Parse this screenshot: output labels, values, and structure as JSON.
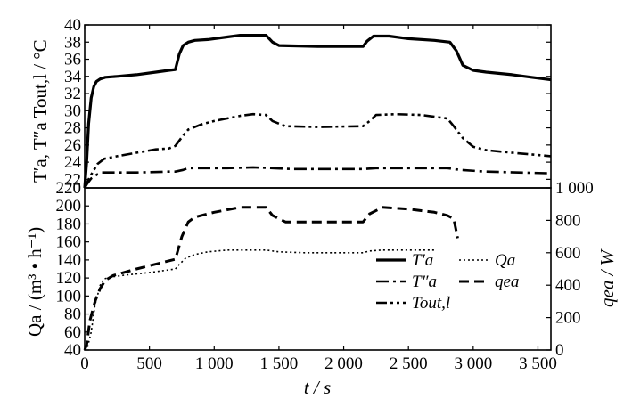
{
  "chart_data": [
    {
      "type": "line",
      "panel": "top",
      "ylabel": "T′a, T″a  Tout,l / °C",
      "ylim": [
        21,
        40
      ],
      "yticks": [
        22,
        24,
        26,
        28,
        30,
        32,
        34,
        36,
        38,
        40
      ],
      "xlim": [
        0,
        3600
      ],
      "grid": false,
      "series": [
        {
          "name": "T′a",
          "style": "solid",
          "points": [
            [
              0,
              21
            ],
            [
              15,
              24
            ],
            [
              30,
              28.5
            ],
            [
              50,
              31.5
            ],
            [
              70,
              32.8
            ],
            [
              90,
              33.4
            ],
            [
              120,
              33.7
            ],
            [
              160,
              33.9
            ],
            [
              250,
              34.0
            ],
            [
              400,
              34.2
            ],
            [
              550,
              34.5
            ],
            [
              650,
              34.7
            ],
            [
              700,
              34.8
            ],
            [
              730,
              36.6
            ],
            [
              760,
              37.6
            ],
            [
              800,
              38.0
            ],
            [
              850,
              38.2
            ],
            [
              950,
              38.3
            ],
            [
              1100,
              38.6
            ],
            [
              1200,
              38.8
            ],
            [
              1350,
              38.8
            ],
            [
              1400,
              38.8
            ],
            [
              1450,
              38.0
            ],
            [
              1500,
              37.6
            ],
            [
              1800,
              37.5
            ],
            [
              2150,
              37.5
            ],
            [
              2180,
              38.1
            ],
            [
              2230,
              38.7
            ],
            [
              2350,
              38.7
            ],
            [
              2500,
              38.4
            ],
            [
              2700,
              38.2
            ],
            [
              2820,
              38.0
            ],
            [
              2870,
              37.0
            ],
            [
              2920,
              35.3
            ],
            [
              3000,
              34.7
            ],
            [
              3100,
              34.5
            ],
            [
              3300,
              34.2
            ],
            [
              3450,
              33.9
            ],
            [
              3600,
              33.6
            ]
          ]
        },
        {
          "name": "T″a",
          "style": "dashdot",
          "points": [
            [
              0,
              21
            ],
            [
              20,
              21.5
            ],
            [
              50,
              22.1
            ],
            [
              100,
              22.6
            ],
            [
              130,
              22.8
            ],
            [
              200,
              22.8
            ],
            [
              400,
              22.8
            ],
            [
              650,
              22.9
            ],
            [
              700,
              22.9
            ],
            [
              760,
              23.1
            ],
            [
              800,
              23.3
            ],
            [
              900,
              23.3
            ],
            [
              1100,
              23.3
            ],
            [
              1300,
              23.4
            ],
            [
              1450,
              23.3
            ],
            [
              1600,
              23.2
            ],
            [
              1900,
              23.2
            ],
            [
              2150,
              23.2
            ],
            [
              2250,
              23.3
            ],
            [
              2500,
              23.3
            ],
            [
              2800,
              23.3
            ],
            [
              2900,
              23.1
            ],
            [
              3100,
              22.9
            ],
            [
              3600,
              22.7
            ]
          ]
        },
        {
          "name": "Tout,l",
          "style": "dashdotdot",
          "points": [
            [
              0,
              21
            ],
            [
              30,
              22.0
            ],
            [
              60,
              22.8
            ],
            [
              100,
              23.8
            ],
            [
              150,
              24.4
            ],
            [
              250,
              24.7
            ],
            [
              400,
              25.1
            ],
            [
              550,
              25.5
            ],
            [
              650,
              25.6
            ],
            [
              700,
              25.9
            ],
            [
              760,
              27.1
            ],
            [
              800,
              27.8
            ],
            [
              900,
              28.4
            ],
            [
              1000,
              28.8
            ],
            [
              1200,
              29.4
            ],
            [
              1300,
              29.6
            ],
            [
              1400,
              29.5
            ],
            [
              1450,
              28.8
            ],
            [
              1550,
              28.2
            ],
            [
              1800,
              28.1
            ],
            [
              2150,
              28.2
            ],
            [
              2200,
              28.8
            ],
            [
              2250,
              29.5
            ],
            [
              2400,
              29.6
            ],
            [
              2600,
              29.5
            ],
            [
              2800,
              29.1
            ],
            [
              2850,
              28.2
            ],
            [
              2920,
              26.8
            ],
            [
              3000,
              25.8
            ],
            [
              3100,
              25.4
            ],
            [
              3300,
              25.1
            ],
            [
              3450,
              24.9
            ],
            [
              3600,
              24.7
            ]
          ]
        }
      ]
    },
    {
      "type": "line",
      "panel": "bottom",
      "ylabel": "Qa / (m³ • h⁻¹)",
      "ylabel_right": "qea / W",
      "ylim": [
        40,
        220
      ],
      "yticks": [
        40,
        60,
        80,
        100,
        120,
        140,
        160,
        180,
        200,
        220
      ],
      "ylim_right": [
        0,
        1000
      ],
      "yticks_right": [
        0,
        200,
        400,
        600,
        800,
        1000
      ],
      "ytick_labels_right": [
        "0",
        "200",
        "400",
        "600",
        "800",
        "1 000"
      ],
      "xlabel": "t / s",
      "xlim": [
        0,
        3600
      ],
      "xticks": [
        0,
        500,
        1000,
        1500,
        2000,
        2500,
        3000,
        3500
      ],
      "xtick_labels": [
        "0",
        "500",
        "1 000",
        "1 500",
        "2 000",
        "2 500",
        "3 000",
        "3 500"
      ],
      "grid": false,
      "series": [
        {
          "name": "Qa",
          "axis": "left",
          "style": "dotted",
          "points": [
            [
              0,
              40
            ],
            [
              20,
              42
            ],
            [
              50,
              60
            ],
            [
              80,
              90
            ],
            [
              120,
              112
            ],
            [
              150,
              119
            ],
            [
              200,
              121
            ],
            [
              300,
              123
            ],
            [
              500,
              126
            ],
            [
              650,
              129
            ],
            [
              700,
              130
            ],
            [
              730,
              135
            ],
            [
              780,
              142
            ],
            [
              850,
              146
            ],
            [
              950,
              149
            ],
            [
              1100,
              151
            ],
            [
              1400,
              151
            ],
            [
              1500,
              149
            ],
            [
              1700,
              148
            ],
            [
              2150,
              148
            ],
            [
              2200,
              150
            ],
            [
              2300,
              151
            ],
            [
              2500,
              151
            ],
            [
              2700,
              151
            ]
          ]
        },
        {
          "name": "qea",
          "axis": "right",
          "style": "dashed",
          "points": [
            [
              0,
              0
            ],
            [
              15,
              30
            ],
            [
              40,
              180
            ],
            [
              80,
              300
            ],
            [
              120,
              380
            ],
            [
              160,
              430
            ],
            [
              220,
              460
            ],
            [
              400,
              500
            ],
            [
              600,
              540
            ],
            [
              700,
              560
            ],
            [
              750,
              700
            ],
            [
              800,
              790
            ],
            [
              850,
              820
            ],
            [
              1000,
              850
            ],
            [
              1200,
              880
            ],
            [
              1350,
              880
            ],
            [
              1400,
              880
            ],
            [
              1450,
              830
            ],
            [
              1550,
              790
            ],
            [
              2000,
              790
            ],
            [
              2150,
              790
            ],
            [
              2200,
              840
            ],
            [
              2300,
              880
            ],
            [
              2500,
              870
            ],
            [
              2700,
              850
            ],
            [
              2800,
              830
            ],
            [
              2850,
              810
            ],
            [
              2880,
              690
            ]
          ]
        }
      ]
    }
  ],
  "legend": {
    "placement": "bottom-right of lower panel",
    "items": [
      {
        "label": "T′a",
        "style": "solid"
      },
      {
        "label": "Qa",
        "style": "dotted"
      },
      {
        "label": "T″a",
        "style": "dashdot"
      },
      {
        "label": "qea",
        "style": "dashed"
      },
      {
        "label": "Tout,l",
        "style": "dashdotdot"
      }
    ]
  },
  "labels": {
    "top_ylabel_main": "T′a, T″a",
    "top_ylabel_sep": "Tout,l / °C",
    "bottom_ylabel": "Qa / (m³ • h⁻¹)",
    "right_ylabel": "qea / W",
    "xlabel": "t / s"
  }
}
